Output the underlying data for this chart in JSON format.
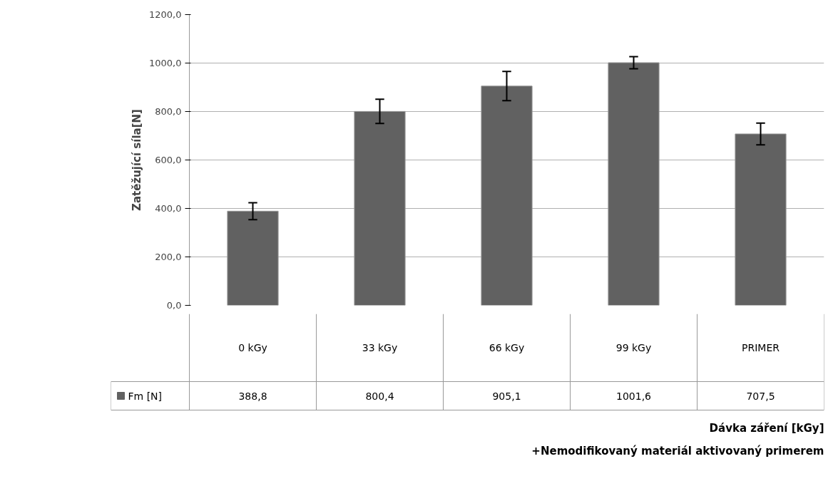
{
  "chart_data": {
    "type": "bar",
    "ylabel": "Zatěžující síla[N]",
    "annotations": [
      "Dávka záření [kGy]",
      "+Nemodifikovaný materiál aktivovaný primerem"
    ],
    "categories": [
      "0 kGy",
      "33 kGy",
      "66 kGy",
      "99 kGy",
      "PRIMER"
    ],
    "series": [
      {
        "name": "Fm [N]",
        "color": "#616161",
        "values": [
          388.8,
          800.4,
          905.1,
          1001.6,
          707.5
        ],
        "errors": [
          35,
          50,
          60,
          25,
          45
        ]
      }
    ],
    "ylim": [
      0,
      1200
    ],
    "yticks": [
      {
        "value": 0,
        "label": "0,0"
      },
      {
        "value": 200,
        "label": "200,0"
      },
      {
        "value": 400,
        "label": "400,0"
      },
      {
        "value": 600,
        "label": "600,0"
      },
      {
        "value": 800,
        "label": "800,0"
      },
      {
        "value": 1000,
        "label": "1000,0"
      },
      {
        "value": 1200,
        "label": "1200,0"
      }
    ],
    "value_labels": [
      "388,8",
      "800,4",
      "905,1",
      "1001,6",
      "707,5"
    ],
    "grid": "y",
    "legend": "bottom"
  }
}
